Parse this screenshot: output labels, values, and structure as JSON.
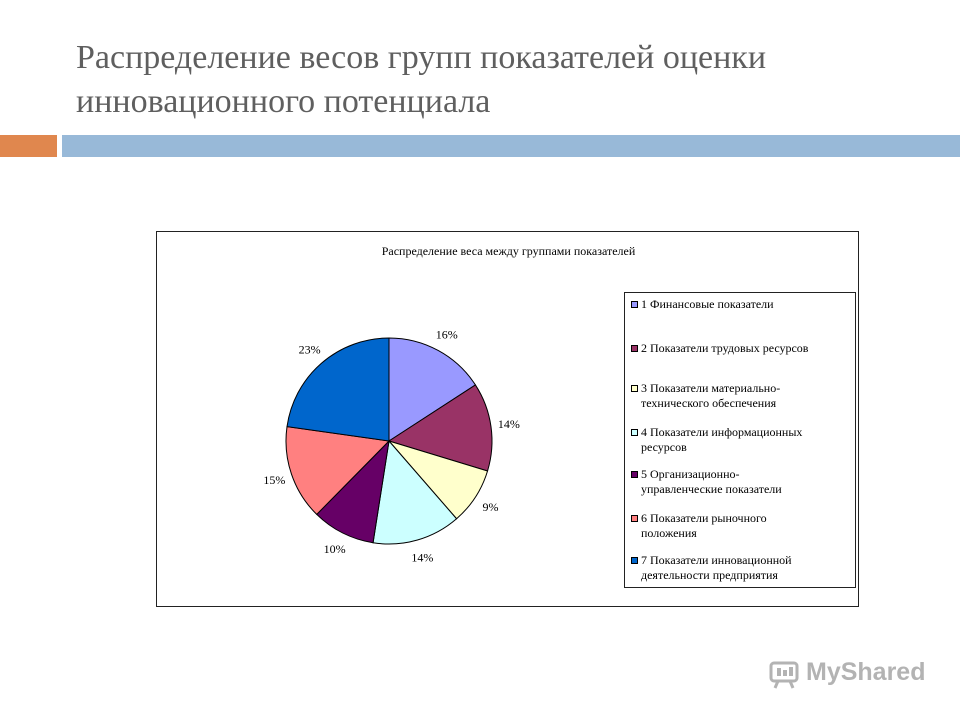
{
  "slide": {
    "title": "Распределение весов групп показателей оценки инновационного потенциала"
  },
  "logo": {
    "text": "MyShared",
    "icon": "myshared-logo-icon"
  },
  "chart_data": {
    "type": "pie",
    "title": "Распределение веса между группами показателей",
    "legend_position": "right",
    "categories": [
      "1 Финансовые показатели",
      "2 Показатели трудовых ресурсов",
      "3 Показатели материально-технического обеспечения",
      "4 Показатели информационных ресурсов",
      "5 Организационно-управленческие показатели",
      "6 Показатели рыночного положения",
      "7 Показатели инновационной деятельности предприятия"
    ],
    "legend_lines": [
      [
        "1 Финансовые показатели"
      ],
      [
        "2 Показатели трудовых ресурсов"
      ],
      [
        "3 Показатели материально-",
        "технического обеспечения"
      ],
      [
        "4 Показатели информационных",
        "ресурсов"
      ],
      [
        "5 Организационно-",
        "управленческие показатели"
      ],
      [
        "6 Показатели рыночного",
        "положения"
      ],
      [
        "7 Показатели инновационной",
        "деятельности предприятия"
      ]
    ],
    "values": [
      16,
      14,
      9,
      14,
      10,
      15,
      23
    ],
    "labels": [
      "16%",
      "14%",
      "9%",
      "14%",
      "10%",
      "15%",
      "23%"
    ],
    "colors": [
      "#9999ff",
      "#993366",
      "#ffffcc",
      "#ccffff",
      "#660066",
      "#ff8080",
      "#0066cc"
    ]
  }
}
